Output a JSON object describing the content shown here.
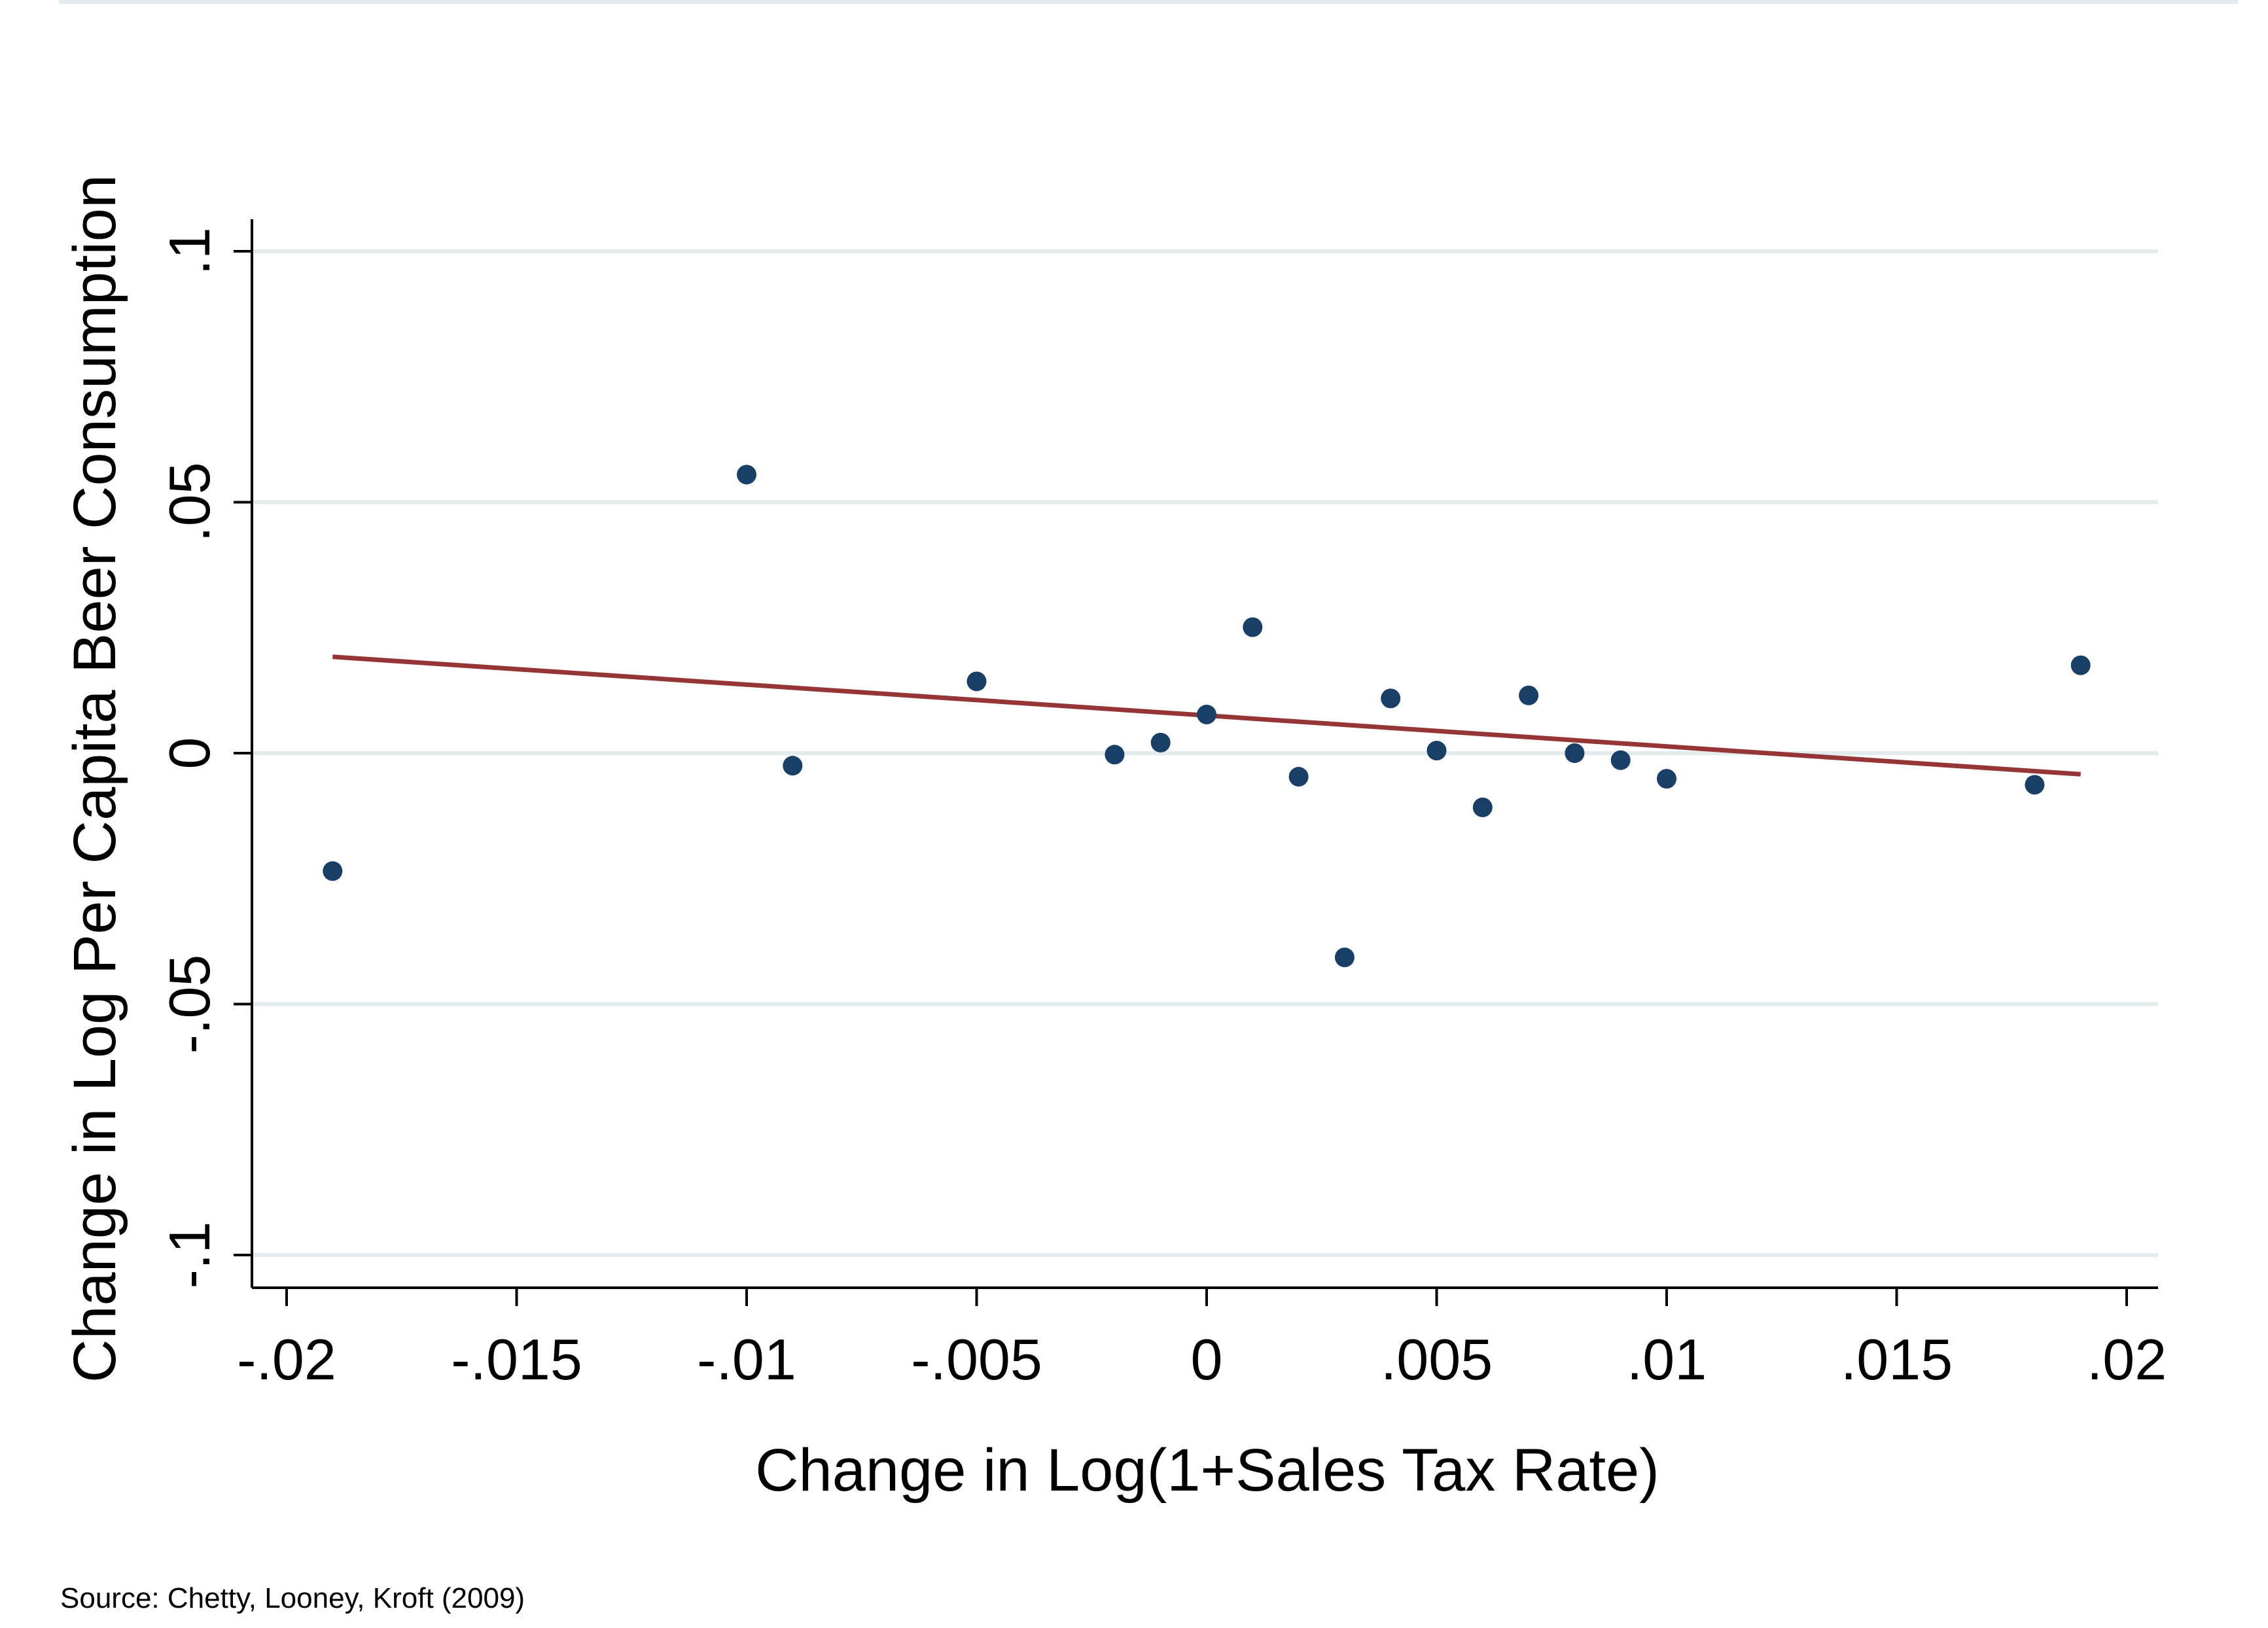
{
  "chart_data": {
    "type": "scatter",
    "xlabel": "Change in Log(1+Sales Tax Rate)",
    "ylabel": "Change in Log Per Capita Beer Consumption",
    "xlim": [
      -0.02,
      0.02
    ],
    "ylim": [
      -0.1,
      0.1
    ],
    "x_ticks": [
      -0.02,
      -0.015,
      -0.01,
      -0.005,
      0,
      0.005,
      0.01,
      0.015,
      0.02
    ],
    "x_tick_labels": [
      "-.02",
      "-.015",
      "-.01",
      "-.005",
      "0",
      ".005",
      ".01",
      ".015",
      ".02"
    ],
    "y_ticks": [
      -0.1,
      -0.05,
      0,
      0.05,
      0.1
    ],
    "y_tick_labels": [
      "-.1",
      "-.05",
      "0",
      ".05",
      ".1"
    ],
    "grid": "horizontal",
    "points": [
      {
        "x": -0.019,
        "y": -0.0235
      },
      {
        "x": -0.01,
        "y": 0.0555
      },
      {
        "x": -0.009,
        "y": -0.0025
      },
      {
        "x": -0.005,
        "y": 0.0143
      },
      {
        "x": -0.002,
        "y": -0.0003
      },
      {
        "x": -0.001,
        "y": 0.0021
      },
      {
        "x": 0.0,
        "y": 0.0077
      },
      {
        "x": 0.001,
        "y": 0.0251
      },
      {
        "x": 0.002,
        "y": -0.0047
      },
      {
        "x": 0.003,
        "y": -0.0407
      },
      {
        "x": 0.004,
        "y": 0.0109
      },
      {
        "x": 0.005,
        "y": 0.0005
      },
      {
        "x": 0.006,
        "y": -0.0108
      },
      {
        "x": 0.007,
        "y": 0.0115
      },
      {
        "x": 0.008,
        "y": 0.0
      },
      {
        "x": 0.009,
        "y": -0.0014
      },
      {
        "x": 0.01,
        "y": -0.0051
      },
      {
        "x": 0.018,
        "y": -0.0063
      },
      {
        "x": 0.019,
        "y": 0.0175
      }
    ],
    "fit_line": {
      "x": [
        -0.019,
        0.019
      ],
      "y": [
        0.0192,
        -0.0042
      ]
    },
    "colors": {
      "points": "#1a3f66",
      "fit_line": "#953535",
      "grid": "#e3ecec",
      "axis": "#000000"
    }
  },
  "footer": {
    "source": "Source: Chetty, Looney, Kroft (2009)"
  }
}
